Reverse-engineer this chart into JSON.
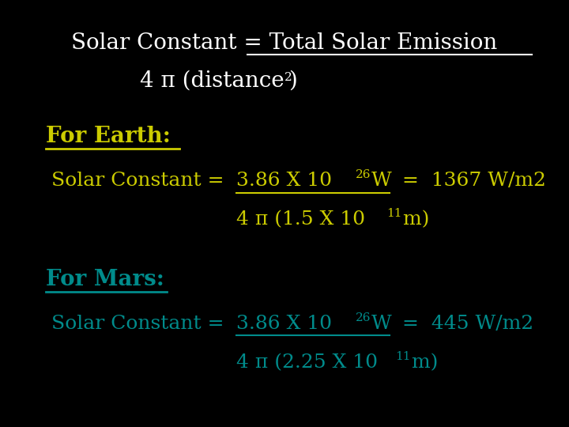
{
  "bg_color": "#000000",
  "white": "#ffffff",
  "yellow": "#cccc00",
  "teal": "#008b8b",
  "fontsize_title": 20,
  "fontsize_header": 20,
  "fontsize_body": 18,
  "fontsize_sup": 11
}
